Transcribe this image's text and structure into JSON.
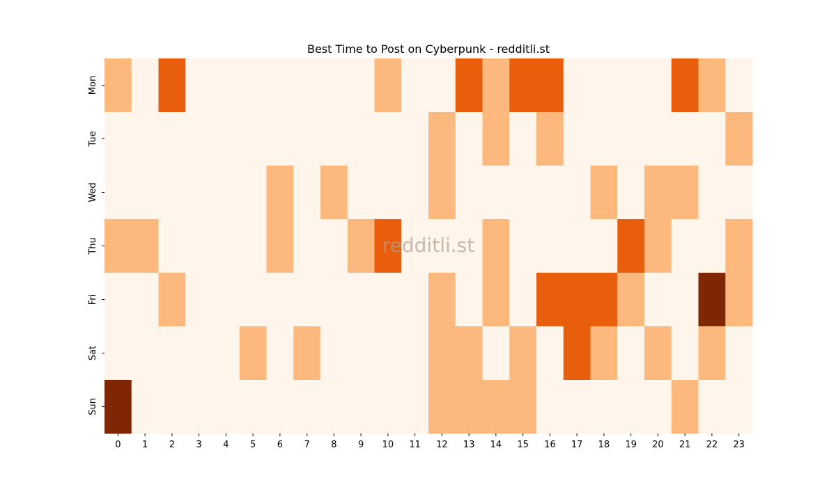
{
  "chart_data": {
    "type": "heatmap",
    "title": "Best Time to Post on Cyberpunk - redditli.st",
    "watermark": "redditli.st",
    "xlabel": "",
    "ylabel": "",
    "x_categories": [
      "0",
      "1",
      "2",
      "3",
      "4",
      "5",
      "6",
      "7",
      "8",
      "9",
      "10",
      "11",
      "12",
      "13",
      "14",
      "15",
      "16",
      "17",
      "18",
      "19",
      "20",
      "21",
      "22",
      "23"
    ],
    "y_categories": [
      "Mon",
      "Tue",
      "Wed",
      "Thu",
      "Fri",
      "Sat",
      "Sun"
    ],
    "colormap": "Oranges",
    "level_colors": [
      "#fff5eb",
      "#fdb97d",
      "#e95e0d",
      "#7f2704"
    ],
    "values": [
      [
        1,
        0,
        2,
        0,
        0,
        0,
        0,
        0,
        0,
        0,
        1,
        0,
        0,
        2,
        1,
        2,
        2,
        0,
        0,
        0,
        0,
        2,
        1,
        0
      ],
      [
        0,
        0,
        0,
        0,
        0,
        0,
        0,
        0,
        0,
        0,
        0,
        0,
        1,
        0,
        1,
        0,
        1,
        0,
        0,
        0,
        0,
        0,
        0,
        1
      ],
      [
        0,
        0,
        0,
        0,
        0,
        0,
        1,
        0,
        1,
        0,
        0,
        0,
        1,
        0,
        0,
        0,
        0,
        0,
        1,
        0,
        1,
        1,
        0,
        0
      ],
      [
        1,
        1,
        0,
        0,
        0,
        0,
        1,
        0,
        0,
        1,
        2,
        0,
        0,
        0,
        1,
        0,
        0,
        0,
        0,
        2,
        1,
        0,
        0,
        1
      ],
      [
        0,
        0,
        1,
        0,
        0,
        0,
        0,
        0,
        0,
        0,
        0,
        0,
        1,
        0,
        1,
        0,
        2,
        2,
        2,
        1,
        0,
        0,
        3,
        1
      ],
      [
        0,
        0,
        0,
        0,
        0,
        1,
        0,
        1,
        0,
        0,
        0,
        0,
        1,
        1,
        0,
        1,
        0,
        2,
        1,
        0,
        1,
        0,
        1,
        0
      ],
      [
        3,
        0,
        0,
        0,
        0,
        0,
        0,
        0,
        0,
        0,
        0,
        0,
        1,
        1,
        1,
        1,
        0,
        0,
        0,
        0,
        0,
        1,
        0,
        0
      ]
    ]
  }
}
